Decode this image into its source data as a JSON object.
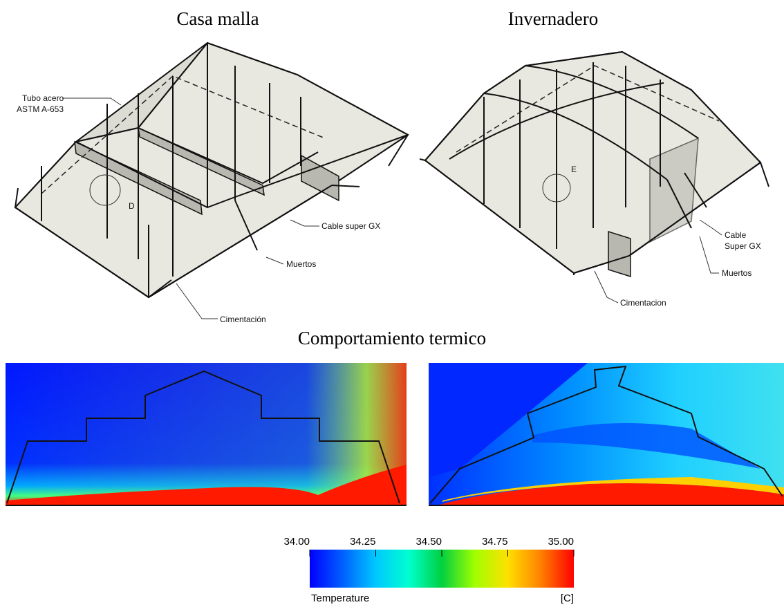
{
  "structures": [
    {
      "title": "Casa malla",
      "detail": "D",
      "labels": [
        {
          "lines": [
            "Tubo acero",
            "ASTM A-653"
          ]
        },
        {
          "lines": [
            "Cable super GX"
          ]
        },
        {
          "lines": [
            "Muertos"
          ]
        },
        {
          "lines": [
            "Cimentación"
          ]
        }
      ]
    },
    {
      "title": "Invernadero",
      "detail": "E",
      "labels": [
        {
          "lines": [
            "Cable",
            "Super GX"
          ]
        },
        {
          "lines": [
            "Muertos"
          ]
        },
        {
          "lines": [
            "Cimentacion"
          ]
        }
      ]
    }
  ],
  "thermal": {
    "title": "Comportamiento termico",
    "colorbar": {
      "title": "Temperature",
      "unit": "[C]",
      "range": [
        34,
        35
      ],
      "ticks": [
        {
          "value": 34,
          "label": "34.00"
        },
        {
          "value": 34.25,
          "label": "34.25"
        },
        {
          "value": 34.5,
          "label": "34.50"
        },
        {
          "value": 34.75,
          "label": "34.75"
        },
        {
          "value": 35,
          "label": "35.00"
        }
      ],
      "colors": [
        "#0000ff",
        "#0060ff",
        "#00c8ff",
        "#00ffd0",
        "#00d040",
        "#a0ff00",
        "#ffe000",
        "#ff8000",
        "#ff0000"
      ]
    }
  }
}
